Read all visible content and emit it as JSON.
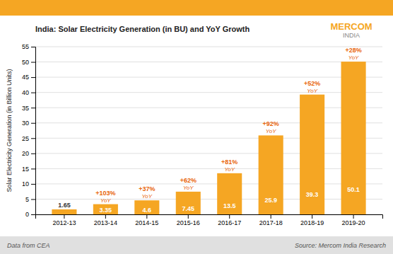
{
  "chart_data": {
    "type": "bar",
    "title": "India: Solar Electricity Generation (in BU) and YoY Growth",
    "ylabel": "Solar Electricity Generation (in Billion Units)",
    "categories": [
      "2012-13",
      "2013-14",
      "2014-15",
      "2015-16",
      "2016-17",
      "2017-18",
      "2018-19",
      "2019-20"
    ],
    "values": [
      1.65,
      3.35,
      4.6,
      7.45,
      13.5,
      25.9,
      39.3,
      50.1
    ],
    "color": "#F5A623",
    "data_labels": true,
    "ylim": [
      0,
      55
    ],
    "yticks": [
      0,
      5,
      10,
      15,
      20,
      25,
      30,
      35,
      40,
      45,
      50,
      55
    ],
    "grid": true,
    "annotations": [
      {
        "category": "2013-14",
        "text": "+103%",
        "subtext": "YoY"
      },
      {
        "category": "2014-15",
        "text": "+37%",
        "subtext": "YoY"
      },
      {
        "category": "2015-16",
        "text": "+62%",
        "subtext": "YoY"
      },
      {
        "category": "2016-17",
        "text": "+81%",
        "subtext": "YoY"
      },
      {
        "category": "2017-18",
        "text": "+92%",
        "subtext": "YoY"
      },
      {
        "category": "2018-19",
        "text": "+52%",
        "subtext": "YoY"
      },
      {
        "category": "2019-20",
        "text": "+28%",
        "subtext": "YoY"
      }
    ],
    "logo": "MERCOM",
    "logo_sub": "INDIA",
    "footer_left": "Data from CEA",
    "footer_right": "Source: Mercom India Research"
  }
}
